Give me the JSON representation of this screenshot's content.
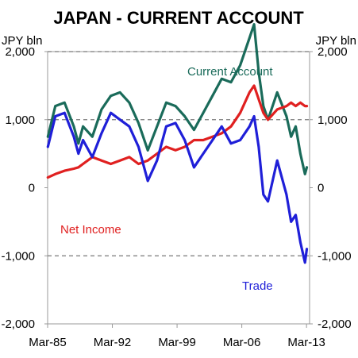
{
  "chart_data": {
    "type": "line",
    "title": "JAPAN - CURRENT ACCOUNT",
    "ylabel_left": "JPY bln",
    "ylabel_right": "JPY bln",
    "ylim": [
      -2000,
      2000
    ],
    "yticks": [
      2000,
      1000,
      0,
      -1000,
      -2000
    ],
    "ytick_labels": [
      "2,000",
      "1,000",
      "0",
      "-1,000",
      "-2,000"
    ],
    "xlim": [
      1985.17,
      2013.5
    ],
    "xticks": [
      1985.17,
      1992.17,
      1999.17,
      2006.17,
      2013.17
    ],
    "xtick_labels": [
      "Mar-85",
      "Mar-92",
      "Mar-99",
      "Mar-06",
      "Mar-13"
    ],
    "grid": "dashed horizontal at 2000, 1000, -1000",
    "x": [
      1985.2,
      1986,
      1987,
      1988,
      1988.5,
      1989,
      1990,
      1991,
      1992,
      1993,
      1994,
      1995,
      1996,
      1997,
      1998,
      1999,
      2000,
      2001,
      2002,
      2003,
      2004,
      2005,
      2006,
      2007,
      2007.5,
      2008,
      2008.5,
      2009,
      2010,
      2011,
      2011.5,
      2012,
      2012.5,
      2013,
      2013.2
    ],
    "series": [
      {
        "name": "Current Account",
        "color": "#1a6b5a",
        "values": [
          750,
          1200,
          1250,
          900,
          650,
          900,
          750,
          1150,
          1350,
          1400,
          1250,
          950,
          550,
          900,
          1250,
          1200,
          1050,
          850,
          1100,
          1350,
          1600,
          1550,
          1800,
          2200,
          2400,
          1700,
          1200,
          1000,
          1400,
          1050,
          750,
          900,
          500,
          200,
          300
        ]
      },
      {
        "name": "Net Income",
        "color": "#e02020",
        "values": [
          150,
          200,
          250,
          280,
          300,
          350,
          450,
          400,
          350,
          400,
          450,
          350,
          400,
          500,
          600,
          550,
          600,
          700,
          700,
          750,
          800,
          900,
          1100,
          1400,
          1500,
          1300,
          1100,
          1000,
          1150,
          1200,
          1250,
          1200,
          1250,
          1200,
          1200
        ]
      },
      {
        "name": "Trade",
        "color": "#1f1fd8",
        "values": [
          600,
          1050,
          1100,
          750,
          500,
          700,
          450,
          800,
          1100,
          1000,
          900,
          600,
          100,
          400,
          900,
          950,
          700,
          300,
          500,
          700,
          900,
          650,
          700,
          900,
          1050,
          600,
          -100,
          -200,
          400,
          -100,
          -500,
          -400,
          -800,
          -1100,
          -900
        ]
      }
    ]
  }
}
